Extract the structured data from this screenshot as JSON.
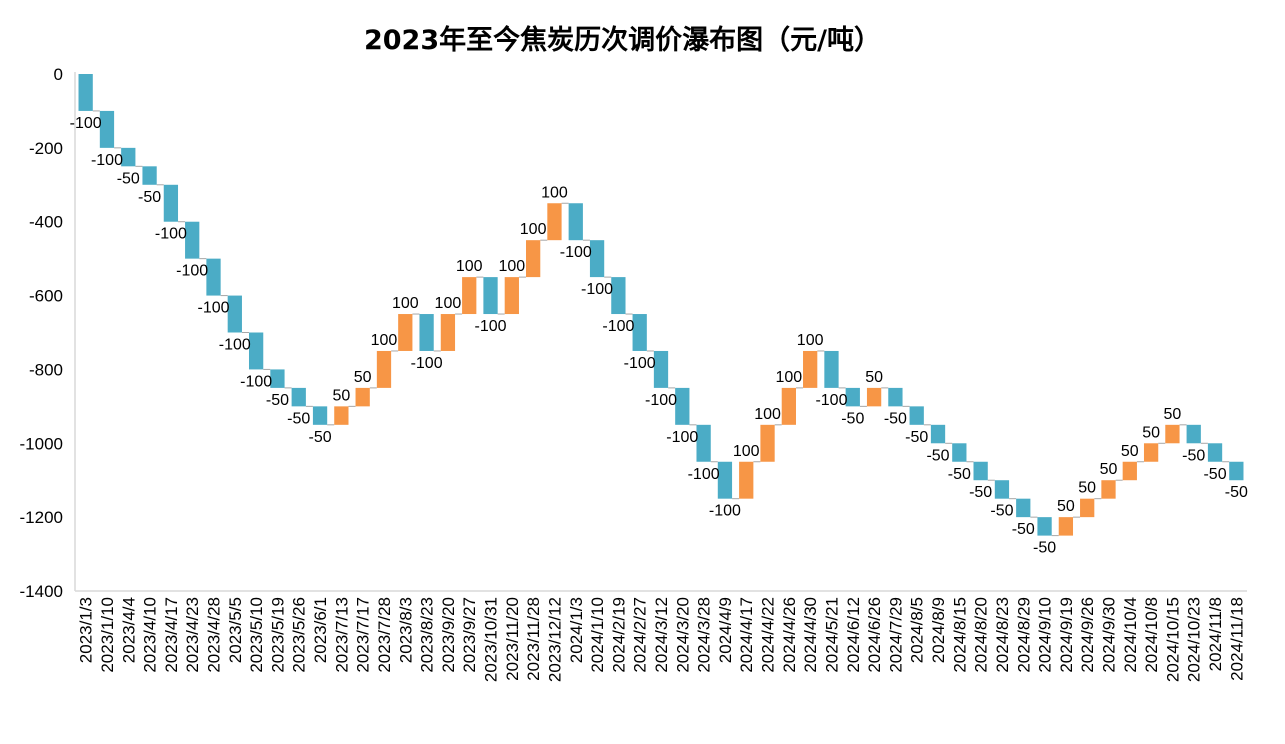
{
  "chart_data": {
    "type": "waterfall",
    "title": "2023年至今焦炭历次调价瀑布图（元/吨）",
    "xlabel": "",
    "ylabel": "",
    "ylim": [
      -1400,
      0
    ],
    "y_ticks": [
      0,
      -200,
      -400,
      -600,
      -800,
      -1000,
      -1200,
      -1400
    ],
    "start_value": 0,
    "categories": [
      "2023/1/3",
      "2023/1/10",
      "2023/4/4",
      "2023/4/10",
      "2023/4/17",
      "2023/4/23",
      "2023/4/28",
      "2023/5/5",
      "2023/5/10",
      "2023/5/19",
      "2023/5/26",
      "2023/6/1",
      "2023/7/13",
      "2023/7/17",
      "2023/7/28",
      "2023/8/3",
      "2023/8/23",
      "2023/9/20",
      "2023/9/27",
      "2023/10/31",
      "2023/11/20",
      "2023/11/28",
      "2023/12/12",
      "2024/1/3",
      "2024/1/10",
      "2024/2/19",
      "2024/2/27",
      "2024/3/12",
      "2024/3/20",
      "2024/3/28",
      "2024/4/9",
      "2024/4/17",
      "2024/4/22",
      "2024/4/26",
      "2024/4/30",
      "2024/5/21",
      "2024/6/12",
      "2024/6/26",
      "2024/7/29",
      "2024/8/5",
      "2024/8/9",
      "2024/8/15",
      "2024/8/20",
      "2024/8/23",
      "2024/8/29",
      "2024/9/10",
      "2024/9/19",
      "2024/9/26",
      "2024/9/30",
      "2024/10/4",
      "2024/10/8",
      "2024/10/15",
      "2024/10/23",
      "2024/11/8",
      "2024/11/18"
    ],
    "changes": [
      -100,
      -100,
      -50,
      -50,
      -100,
      -100,
      -100,
      -100,
      -100,
      -50,
      -50,
      -50,
      50,
      50,
      100,
      100,
      -100,
      100,
      100,
      -100,
      100,
      100,
      100,
      -100,
      -100,
      -100,
      -100,
      -100,
      -100,
      -100,
      -100,
      100,
      100,
      100,
      100,
      -100,
      -50,
      50,
      -50,
      -50,
      -50,
      -50,
      -50,
      -50,
      -50,
      -50,
      50,
      50,
      50,
      50,
      50,
      50,
      -50,
      -50,
      -50
    ],
    "labels": [
      "-100",
      "-100",
      "-50",
      "-50",
      "-100",
      "-100",
      "-100",
      "-100",
      "-100",
      "-50",
      "-50",
      "-50",
      "50",
      "50",
      "100",
      "100",
      "-100",
      "100",
      "100",
      "-100",
      "100",
      "100",
      "100",
      "-100",
      "-100",
      "-100",
      "-100",
      "-100",
      "-100",
      "-100",
      "-100",
      "100",
      "100",
      "100",
      "100",
      "-100",
      "-50",
      "50",
      "-50",
      "-50",
      "-50",
      "-50",
      "-50",
      "-50",
      "-50",
      "-50",
      "50",
      "50",
      "50",
      "50",
      "50",
      "50",
      "-50",
      "-50",
      "-50"
    ],
    "colors": {
      "decrease": "#4BACC6",
      "increase": "#F79646",
      "connector": "#A6A6A6",
      "axis": "#D9D9D9"
    }
  }
}
